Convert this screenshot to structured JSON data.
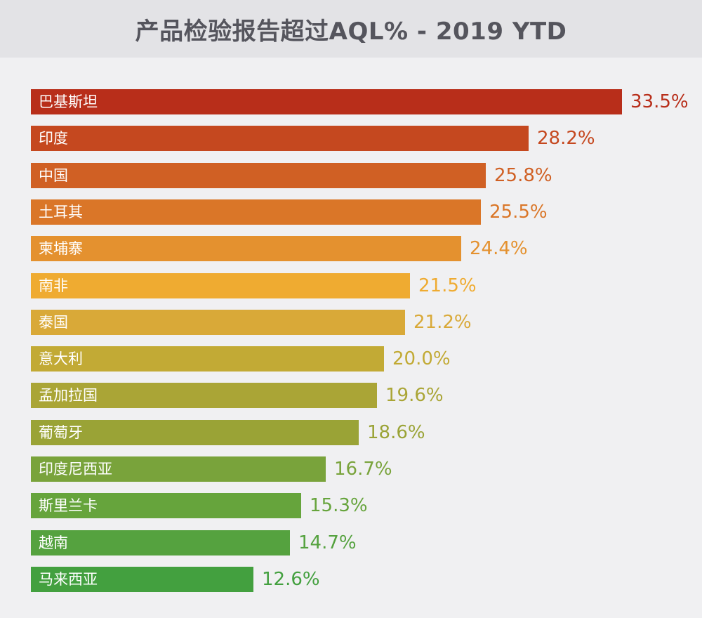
{
  "chart_data": {
    "type": "bar",
    "orientation": "horizontal",
    "title": "产品检验报告超过AQL% - 2019 YTD",
    "categories": [
      "巴基斯坦",
      "印度",
      "中国",
      "土耳其",
      "柬埔寨",
      "南非",
      "泰国",
      "意大利",
      "孟加拉国",
      "葡萄牙",
      "印度尼西亚",
      "斯里兰卡",
      "越南",
      "马来西亚"
    ],
    "values": [
      33.5,
      28.2,
      25.8,
      25.5,
      24.4,
      21.5,
      21.2,
      20.0,
      19.6,
      18.6,
      16.7,
      15.3,
      14.7,
      12.6
    ],
    "value_labels": [
      "33.5%",
      "28.2%",
      "25.8%",
      "25.5%",
      "24.4%",
      "21.5%",
      "21.2%",
      "20.0%",
      "19.6%",
      "18.6%",
      "16.7%",
      "15.3%",
      "14.7%",
      "12.6%"
    ],
    "colors": [
      "#b82e1a",
      "#c5481f",
      "#d06024",
      "#da7628",
      "#e4912f",
      "#efab31",
      "#d9a938",
      "#c2aa35",
      "#aaa536",
      "#9aa336",
      "#79a33b",
      "#66a43c",
      "#55a23f",
      "#43a03f"
    ],
    "xlabel": "",
    "ylabel": "",
    "grid": false,
    "legend": "none"
  }
}
